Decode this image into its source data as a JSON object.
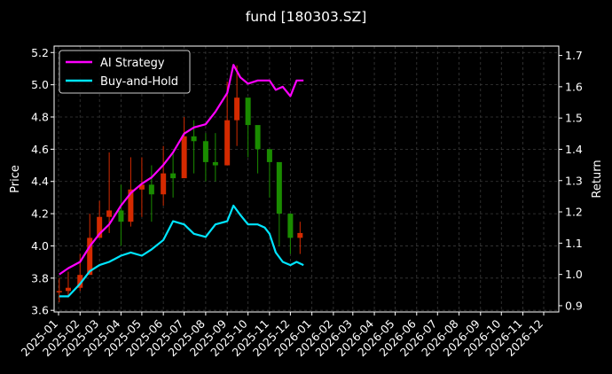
{
  "chart_data": {
    "type": "line",
    "title": "fund [180303.SZ]",
    "xlabel": "",
    "ylabel": "Price",
    "y2label": "Return",
    "grid": true,
    "legend_position": "top-left",
    "x_ticks": [
      "2025-01",
      "2025-02",
      "2025-03",
      "2025-04",
      "2025-05",
      "2025-06",
      "2025-07",
      "2025-08",
      "2025-09",
      "2025-10",
      "2025-11",
      "2025-12",
      "2026-01",
      "2026-02",
      "2026-03",
      "2026-04",
      "2026-05",
      "2026-06",
      "2026-07",
      "2026-08",
      "2026-09",
      "2026-10",
      "2026-11",
      "2026-12"
    ],
    "ylim": [
      3.59,
      5.24
    ],
    "y_ticks": [
      3.6,
      3.8,
      4.0,
      4.2,
      4.4,
      4.6,
      4.8,
      5.0,
      5.2
    ],
    "y2lim": [
      0.88,
      1.73
    ],
    "y2_ticks": [
      0.9,
      1.0,
      1.1,
      1.2,
      1.3,
      1.4,
      1.5,
      1.6,
      1.7
    ],
    "colors": {
      "ai_strategy": "#ff00ff",
      "buy_and_hold": "#00e5ff",
      "candle_up": "#d42a00",
      "candle_down": "#1a8c00",
      "grid": "#3a3a3a",
      "background": "#000000"
    },
    "price_series": {
      "name": "Price",
      "x": [
        "2025-01-02",
        "2025-01-15",
        "2025-02-01",
        "2025-02-15",
        "2025-03-01",
        "2025-03-15",
        "2025-04-01",
        "2025-04-15",
        "2025-05-01",
        "2025-05-15",
        "2025-06-01",
        "2025-06-15",
        "2025-07-01",
        "2025-07-15",
        "2025-08-01",
        "2025-08-15",
        "2025-09-01",
        "2025-09-15",
        "2025-10-01",
        "2025-10-15",
        "2025-11-01",
        "2025-11-15",
        "2025-12-01",
        "2025-12-15"
      ],
      "close": [
        3.72,
        3.74,
        3.82,
        4.05,
        4.18,
        4.22,
        4.15,
        4.35,
        4.38,
        4.32,
        4.45,
        4.42,
        4.68,
        4.65,
        4.52,
        4.5,
        4.78,
        4.92,
        4.75,
        4.6,
        4.52,
        4.2,
        4.05,
        4.08
      ],
      "high": [
        3.8,
        3.84,
        3.95,
        4.2,
        4.28,
        4.58,
        4.38,
        4.55,
        4.55,
        4.5,
        4.62,
        4.58,
        4.8,
        4.78,
        4.7,
        4.7,
        5.02,
        5.12,
        4.92,
        4.65,
        4.6,
        4.35,
        4.18,
        4.15
      ],
      "low": [
        3.65,
        3.68,
        3.72,
        3.9,
        4.05,
        4.08,
        4.0,
        4.12,
        4.18,
        4.15,
        4.25,
        4.3,
        4.5,
        4.45,
        4.4,
        4.4,
        4.55,
        4.62,
        4.55,
        4.45,
        4.3,
        4.0,
        3.95,
        3.95
      ]
    },
    "series": [
      {
        "name": "AI Strategy",
        "axis": "right",
        "x": [
          "2025-01-02",
          "2025-01-15",
          "2025-02-01",
          "2025-02-15",
          "2025-03-01",
          "2025-03-15",
          "2025-04-01",
          "2025-04-15",
          "2025-05-01",
          "2025-05-15",
          "2025-06-01",
          "2025-06-15",
          "2025-07-01",
          "2025-07-15",
          "2025-08-01",
          "2025-08-15",
          "2025-09-01",
          "2025-09-10",
          "2025-09-20",
          "2025-10-01",
          "2025-10-15",
          "2025-10-25",
          "2025-11-01",
          "2025-11-10",
          "2025-11-20",
          "2025-12-01",
          "2025-12-10",
          "2025-12-20"
        ],
        "values": [
          1.0,
          1.02,
          1.04,
          1.09,
          1.13,
          1.16,
          1.22,
          1.26,
          1.29,
          1.31,
          1.35,
          1.39,
          1.45,
          1.47,
          1.48,
          1.52,
          1.58,
          1.67,
          1.63,
          1.61,
          1.62,
          1.62,
          1.62,
          1.59,
          1.6,
          1.57,
          1.62,
          1.62
        ]
      },
      {
        "name": "Buy-and-Hold",
        "axis": "right",
        "x": [
          "2025-01-02",
          "2025-01-15",
          "2025-02-01",
          "2025-02-15",
          "2025-03-01",
          "2025-03-15",
          "2025-04-01",
          "2025-04-15",
          "2025-05-01",
          "2025-05-15",
          "2025-06-01",
          "2025-06-15",
          "2025-07-01",
          "2025-07-15",
          "2025-08-01",
          "2025-08-15",
          "2025-09-01",
          "2025-09-10",
          "2025-09-20",
          "2025-10-01",
          "2025-10-15",
          "2025-10-25",
          "2025-11-01",
          "2025-11-10",
          "2025-11-20",
          "2025-12-01",
          "2025-12-10",
          "2025-12-20"
        ],
        "values": [
          0.93,
          0.93,
          0.97,
          1.01,
          1.03,
          1.04,
          1.06,
          1.07,
          1.06,
          1.08,
          1.11,
          1.17,
          1.16,
          1.13,
          1.12,
          1.16,
          1.17,
          1.22,
          1.19,
          1.16,
          1.16,
          1.15,
          1.13,
          1.07,
          1.04,
          1.03,
          1.04,
          1.03
        ]
      }
    ]
  }
}
